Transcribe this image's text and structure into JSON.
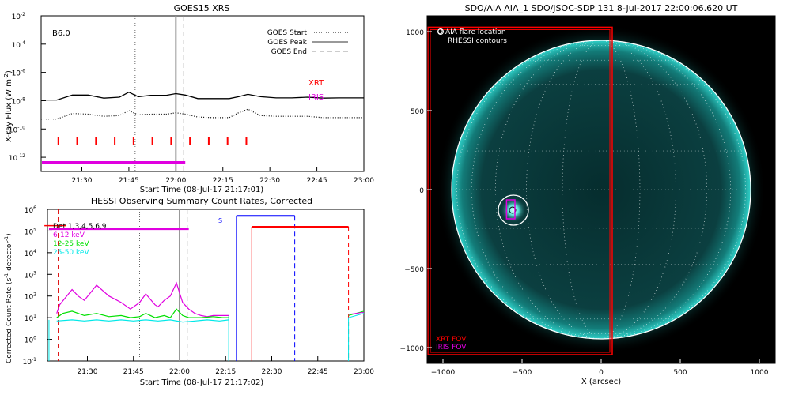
{
  "colors": {
    "xrt": "#ff0000",
    "iris": "#e000e0",
    "aia": "#0ea5a0",
    "hessi_low": "#e000e0",
    "hessi_mid": "#00e000",
    "hessi_high": "#00e8e8",
    "hessi_night": "#0000ff"
  },
  "chart_data": [
    {
      "type": "line",
      "title": "GOES15 XRS",
      "xlabel": "Start Time (08-Jul-17 21:17:01)",
      "ylabel": "X-ray Flux (W m",
      "ylabel_sup": "-2",
      "ylabel_end": ")",
      "level_label": "B6.0",
      "x_ticks": [
        "21:30",
        "21:45",
        "22:00",
        "22:15",
        "22:30",
        "22:45",
        "23:00"
      ],
      "y_ticks": [
        {
          "base": "10",
          "exp": "-2"
        },
        {
          "base": "10",
          "exp": "-4"
        },
        {
          "base": "10",
          "exp": "-6"
        },
        {
          "base": "10",
          "exp": "-8"
        },
        {
          "base": "10",
          "exp": "-10"
        },
        {
          "base": "10",
          "exp": "-12"
        }
      ],
      "ylim_log10": [
        -13,
        -2
      ],
      "xlim_minutes": [
        0,
        103
      ],
      "legend": [
        {
          "name": "GOES Start",
          "style": "dotted"
        },
        {
          "name": "GOES Peak",
          "style": "solid"
        },
        {
          "name": "GOES End",
          "style": "dashed"
        }
      ],
      "xrt_label": "XRT",
      "iris_label": "IRIS",
      "goes_start_min": 30,
      "goes_peak_min": 43,
      "goes_end_min": 45.5,
      "xrt_exposure_min": [
        5.5,
        11.5,
        17.5,
        23.5,
        29.5,
        35.5,
        41.5,
        47.5,
        53.5,
        59.5,
        65.5
      ],
      "iris_interval_min": [
        0,
        46
      ],
      "long_channel": {
        "x": [
          0,
          5,
          10,
          15,
          20,
          25,
          28,
          31,
          35,
          40,
          43,
          46,
          50,
          55,
          60,
          63,
          66,
          70,
          75,
          80,
          85,
          90,
          95,
          100,
          103
        ],
        "log10": [
          -7.95,
          -7.95,
          -7.6,
          -7.6,
          -7.82,
          -7.75,
          -7.4,
          -7.72,
          -7.62,
          -7.62,
          -7.5,
          -7.6,
          -7.85,
          -7.85,
          -7.85,
          -7.72,
          -7.55,
          -7.72,
          -7.8,
          -7.8,
          -7.75,
          -7.82,
          -7.8,
          -7.8,
          -7.8
        ]
      },
      "short_channel": {
        "x": [
          0,
          5,
          10,
          15,
          20,
          25,
          28,
          31,
          35,
          40,
          43,
          46,
          50,
          55,
          60,
          63,
          66,
          70,
          75,
          80,
          85,
          90,
          95,
          100,
          103
        ],
        "log10": [
          -9.3,
          -9.3,
          -8.9,
          -8.95,
          -9.1,
          -9.05,
          -8.7,
          -9.0,
          -8.95,
          -8.95,
          -8.85,
          -8.95,
          -9.15,
          -9.2,
          -9.2,
          -8.85,
          -8.6,
          -9.05,
          -9.1,
          -9.1,
          -9.1,
          -9.2,
          -9.2,
          -9.2,
          -9.2
        ]
      }
    },
    {
      "type": "line",
      "title": "HESSI Observing Summary Count Rates, Corrected",
      "xlabel": "Start Time (08-Jul-17 21:17:02)",
      "ylabel": "Corrected Count Rate (s",
      "ylabel_sup": "-1",
      "ylabel_end": " detector",
      "ylabel_sup2": "-1",
      "ylabel_close": ")",
      "x_ticks": [
        "21:30",
        "21:45",
        "22:00",
        "22:15",
        "22:30",
        "22:45",
        "23:00"
      ],
      "y_ticks": [
        {
          "base": "10",
          "exp": "6"
        },
        {
          "base": "10",
          "exp": "5"
        },
        {
          "base": "10",
          "exp": "4"
        },
        {
          "base": "10",
          "exp": "3"
        },
        {
          "base": "10",
          "exp": "2"
        },
        {
          "base": "10",
          "exp": "1"
        },
        {
          "base": "10",
          "exp": "0"
        },
        {
          "base": "10",
          "exp": "-1"
        }
      ],
      "ylim_log10": [
        -1,
        6
      ],
      "xlim_minutes": [
        0,
        103
      ],
      "legend": [
        {
          "name": "Det 1,3,4,5,6,9",
          "color": "#000000"
        },
        {
          "name": "6-12 keV",
          "color": "#e000e0"
        },
        {
          "name": "12-25 keV",
          "color": "#00e000"
        },
        {
          "name": "25-50 keV",
          "color": "#00e8e8"
        }
      ],
      "saa_label": "S",
      "series": [
        {
          "name": "6-12 keV",
          "x": [
            3,
            4,
            8,
            10,
            12,
            16,
            20,
            24,
            27,
            30,
            32,
            35,
            36,
            38,
            40,
            42,
            44,
            46,
            48,
            50,
            52,
            54,
            57,
            59
          ],
          "log10": [
            1.2,
            1.6,
            2.3,
            2.0,
            1.8,
            2.5,
            2.0,
            1.7,
            1.4,
            1.7,
            2.1,
            1.6,
            1.5,
            1.8,
            2.0,
            2.6,
            1.7,
            1.4,
            1.2,
            1.1,
            1.05,
            1.1,
            1.1,
            1.1
          ]
        },
        {
          "name": "12-25 keV",
          "x": [
            3,
            5,
            8,
            12,
            16,
            20,
            24,
            27,
            30,
            32,
            35,
            38,
            40,
            42,
            44,
            46,
            50,
            54,
            57,
            59
          ],
          "log10": [
            1.0,
            1.2,
            1.3,
            1.1,
            1.2,
            1.05,
            1.1,
            1.0,
            1.05,
            1.2,
            1.0,
            1.1,
            1.0,
            1.4,
            1.1,
            1.0,
            1.0,
            1.05,
            1.0,
            1.0
          ]
        },
        {
          "name": "25-50 keV",
          "x": [
            3,
            8,
            12,
            16,
            20,
            24,
            28,
            32,
            36,
            40,
            44,
            48,
            52,
            56,
            59
          ],
          "log10": [
            0.85,
            0.9,
            0.85,
            0.9,
            0.85,
            0.9,
            0.85,
            0.9,
            0.85,
            0.9,
            0.8,
            0.85,
            0.9,
            0.85,
            0.9
          ]
        }
      ]
    },
    {
      "type": "image",
      "title": "SDO/AIA AIA_1 SDO/JSOC-SDP 131   8-Jul-2017 22:00:06.620 UT",
      "xlabel": "X (arcsec)",
      "ylabel": "",
      "x_ticks": [
        "−1000",
        "−500",
        "0",
        "500",
        "1000"
      ],
      "y_ticks": [
        "1000",
        "500",
        "0",
        "−500",
        "−1000"
      ],
      "xlim": [
        -1100,
        1100
      ],
      "ylim": [
        -1100,
        1100
      ],
      "legend_top": [
        "O AIA flare location",
        "RHESSI contours"
      ],
      "legend_bottom": [
        {
          "name": "XRT FOV",
          "color": "#ff0000"
        },
        {
          "name": "IRIS FOV",
          "color": "#e000e0"
        }
      ],
      "flare_location_arcsec": [
        -555,
        -130
      ],
      "solar_radius_arcsec": 945,
      "xrt_fov_arcsec": [
        [
          -1095,
          1028
        ],
        [
          70,
          -1045
        ]
      ],
      "iris_fov_arcsec": [
        [
          -598,
          -65
        ],
        [
          -545,
          -185
        ]
      ]
    }
  ]
}
